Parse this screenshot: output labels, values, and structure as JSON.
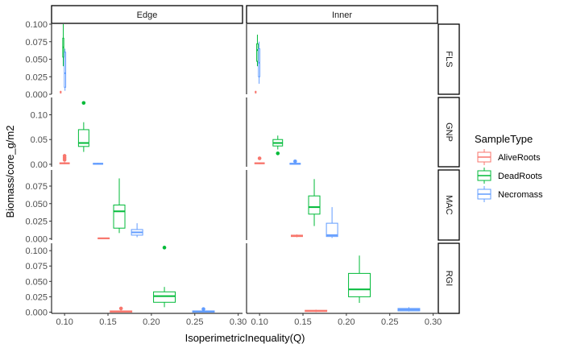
{
  "chart_data": {
    "type": "boxplot",
    "title": "",
    "xlabel": "IsoperimetricInequality(Q)",
    "ylabel": "Biomass/core_g/m2",
    "col_facets": [
      "Edge",
      "Inner"
    ],
    "row_facets": [
      "FLS",
      "GNP",
      "MAC",
      "RGI"
    ],
    "xlim": [
      0.085,
      0.305
    ],
    "x_ticks": [
      0.1,
      0.15,
      0.2,
      0.25,
      0.3
    ],
    "x_tick_labels": [
      "0.10",
      "0.15",
      "0.20",
      "0.25",
      "0.30"
    ],
    "y_axes": [
      {
        "facet": "FLS",
        "ylim": [
          0,
          0.1
        ],
        "ticks": [
          0,
          0.025,
          0.05,
          0.075,
          0.1
        ],
        "tick_labels": [
          "0.000",
          "0.025",
          "0.050",
          "0.075",
          "0.100"
        ]
      },
      {
        "facet": "GNP",
        "ylim": [
          -0.005,
          0.135
        ],
        "ticks": [
          0,
          0.05,
          0.1
        ],
        "tick_labels": [
          "0.00",
          "0.05",
          "0.10"
        ]
      },
      {
        "facet": "MAC",
        "ylim": [
          -0.002,
          0.098
        ],
        "ticks": [
          0,
          0.025,
          0.05,
          0.075
        ],
        "tick_labels": [
          "0.000",
          "0.025",
          "0.050",
          "0.075"
        ]
      },
      {
        "facet": "RGI",
        "ylim": [
          -0.002,
          0.112
        ],
        "ticks": [
          0,
          0.025,
          0.05,
          0.075,
          0.1
        ],
        "tick_labels": [
          "0.000",
          "0.025",
          "0.050",
          "0.075",
          "0.100"
        ]
      }
    ],
    "legend": {
      "title": "SampleType",
      "position": "right",
      "items": [
        {
          "name": "AliveRoots",
          "color": "#F8766D"
        },
        {
          "name": "DeadRoots",
          "color": "#00BA38"
        },
        {
          "name": "Necromass",
          "color": "#619CFF"
        }
      ]
    },
    "grid": false,
    "boxes": [
      {
        "facet_col": "Edge",
        "facet_row": "FLS",
        "type": "AliveRoots",
        "x_center": 0.0955,
        "width": 0.001,
        "q1": 0.002,
        "median": 0.003,
        "q3": 0.004,
        "whisker_low": 0.001,
        "whisker_high": 0.005,
        "outliers": []
      },
      {
        "facet_col": "Edge",
        "facet_row": "FLS",
        "type": "DeadRoots",
        "x_center": 0.0985,
        "width": 0.0012,
        "q1": 0.053,
        "median": 0.067,
        "q3": 0.08,
        "whisker_low": 0.04,
        "whisker_high": 0.1,
        "outliers": []
      },
      {
        "facet_col": "Edge",
        "facet_row": "FLS",
        "type": "Necromass",
        "x_center": 0.1005,
        "width": 0.0016,
        "q1": 0.01,
        "median": 0.03,
        "q3": 0.06,
        "whisker_low": 0.005,
        "whisker_high": 0.065,
        "outliers": []
      },
      {
        "facet_col": "Inner",
        "facet_row": "FLS",
        "type": "AliveRoots",
        "x_center": 0.0955,
        "width": 0.001,
        "q1": 0.002,
        "median": 0.003,
        "q3": 0.004,
        "whisker_low": 0.001,
        "whisker_high": 0.005,
        "outliers": []
      },
      {
        "facet_col": "Inner",
        "facet_row": "FLS",
        "type": "DeadRoots",
        "x_center": 0.0975,
        "width": 0.0016,
        "q1": 0.047,
        "median": 0.063,
        "q3": 0.072,
        "whisker_low": 0.04,
        "whisker_high": 0.085,
        "outliers": []
      },
      {
        "facet_col": "Inner",
        "facet_row": "FLS",
        "type": "Necromass",
        "x_center": 0.0995,
        "width": 0.0016,
        "q1": 0.025,
        "median": 0.045,
        "q3": 0.065,
        "whisker_low": 0.015,
        "whisker_high": 0.075,
        "outliers": []
      },
      {
        "facet_col": "Edge",
        "facet_row": "GNP",
        "type": "AliveRoots",
        "x_center": 0.1,
        "width": 0.011,
        "q1": 0.001,
        "median": 0.002,
        "q3": 0.003,
        "whisker_low": 0.0,
        "whisker_high": 0.005,
        "outliers": [
          0.009,
          0.013,
          0.017
        ]
      },
      {
        "facet_col": "Edge",
        "facet_row": "GNP",
        "type": "DeadRoots",
        "x_center": 0.122,
        "width": 0.012,
        "q1": 0.036,
        "median": 0.043,
        "q3": 0.07,
        "whisker_low": 0.025,
        "whisker_high": 0.085,
        "outliers": [
          0.124
        ]
      },
      {
        "facet_col": "Edge",
        "facet_row": "GNP",
        "type": "Necromass",
        "x_center": 0.1385,
        "width": 0.011,
        "q1": 0.0,
        "median": 0.001,
        "q3": 0.002,
        "whisker_low": 0.0,
        "whisker_high": 0.003,
        "outliers": []
      },
      {
        "facet_col": "Inner",
        "facet_row": "GNP",
        "type": "AliveRoots",
        "x_center": 0.1,
        "width": 0.011,
        "q1": 0.001,
        "median": 0.002,
        "q3": 0.003,
        "whisker_low": 0.0,
        "whisker_high": 0.004,
        "outliers": [
          0.012
        ]
      },
      {
        "facet_col": "Inner",
        "facet_row": "GNP",
        "type": "DeadRoots",
        "x_center": 0.121,
        "width": 0.011,
        "q1": 0.037,
        "median": 0.043,
        "q3": 0.05,
        "whisker_low": 0.03,
        "whisker_high": 0.058,
        "outliers": [
          0.022
        ]
      },
      {
        "facet_col": "Inner",
        "facet_row": "GNP",
        "type": "Necromass",
        "x_center": 0.141,
        "width": 0.012,
        "q1": 0.0,
        "median": 0.001,
        "q3": 0.002,
        "whisker_low": 0.0,
        "whisker_high": 0.003,
        "outliers": [
          0.006
        ]
      },
      {
        "facet_col": "Edge",
        "facet_row": "MAC",
        "type": "AliveRoots",
        "x_center": 0.145,
        "width": 0.013,
        "q1": 0.0,
        "median": 0.0005,
        "q3": 0.001,
        "whisker_low": 0.0,
        "whisker_high": 0.001,
        "outliers": []
      },
      {
        "facet_col": "Edge",
        "facet_row": "MAC",
        "type": "DeadRoots",
        "x_center": 0.163,
        "width": 0.013,
        "q1": 0.015,
        "median": 0.039,
        "q3": 0.048,
        "whisker_low": 0.008,
        "whisker_high": 0.086,
        "outliers": []
      },
      {
        "facet_col": "Edge",
        "facet_row": "MAC",
        "type": "Necromass",
        "x_center": 0.1835,
        "width": 0.013,
        "q1": 0.005,
        "median": 0.009,
        "q3": 0.013,
        "whisker_low": 0.002,
        "whisker_high": 0.022,
        "outliers": []
      },
      {
        "facet_col": "Inner",
        "facet_row": "MAC",
        "type": "AliveRoots",
        "x_center": 0.143,
        "width": 0.013,
        "q1": 0.003,
        "median": 0.004,
        "q3": 0.005,
        "whisker_low": 0.002,
        "whisker_high": 0.006,
        "outliers": []
      },
      {
        "facet_col": "Inner",
        "facet_row": "MAC",
        "type": "DeadRoots",
        "x_center": 0.163,
        "width": 0.013,
        "q1": 0.035,
        "median": 0.045,
        "q3": 0.061,
        "whisker_low": 0.018,
        "whisker_high": 0.085,
        "outliers": []
      },
      {
        "facet_col": "Inner",
        "facet_row": "MAC",
        "type": "Necromass",
        "x_center": 0.1835,
        "width": 0.013,
        "q1": 0.003,
        "median": 0.005,
        "q3": 0.022,
        "whisker_low": 0.001,
        "whisker_high": 0.045,
        "outliers": []
      },
      {
        "facet_col": "Edge",
        "facet_row": "RGI",
        "type": "AliveRoots",
        "x_center": 0.165,
        "width": 0.025,
        "q1": 0.0,
        "median": 0.001,
        "q3": 0.002,
        "whisker_low": 0.0,
        "whisker_high": 0.003,
        "outliers": [
          0.006
        ]
      },
      {
        "facet_col": "Edge",
        "facet_row": "RGI",
        "type": "DeadRoots",
        "x_center": 0.215,
        "width": 0.025,
        "q1": 0.016,
        "median": 0.026,
        "q3": 0.033,
        "whisker_low": 0.008,
        "whisker_high": 0.041,
        "outliers": [
          0.105
        ]
      },
      {
        "facet_col": "Edge",
        "facet_row": "RGI",
        "type": "Necromass",
        "x_center": 0.26,
        "width": 0.025,
        "q1": 0.0,
        "median": 0.001,
        "q3": 0.002,
        "whisker_low": 0.0,
        "whisker_high": 0.003,
        "outliers": [
          0.005
        ]
      },
      {
        "facet_col": "Inner",
        "facet_row": "RGI",
        "type": "AliveRoots",
        "x_center": 0.165,
        "width": 0.025,
        "q1": 0.001,
        "median": 0.002,
        "q3": 0.003,
        "whisker_low": 0.0,
        "whisker_high": 0.004,
        "outliers": []
      },
      {
        "facet_col": "Inner",
        "facet_row": "RGI",
        "type": "DeadRoots",
        "x_center": 0.215,
        "width": 0.025,
        "q1": 0.025,
        "median": 0.037,
        "q3": 0.063,
        "whisker_low": 0.015,
        "whisker_high": 0.092,
        "outliers": []
      },
      {
        "facet_col": "Inner",
        "facet_row": "RGI",
        "type": "Necromass",
        "x_center": 0.272,
        "width": 0.025,
        "q1": 0.002,
        "median": 0.004,
        "q3": 0.006,
        "whisker_low": 0.001,
        "whisker_high": 0.008,
        "outliers": []
      }
    ]
  }
}
